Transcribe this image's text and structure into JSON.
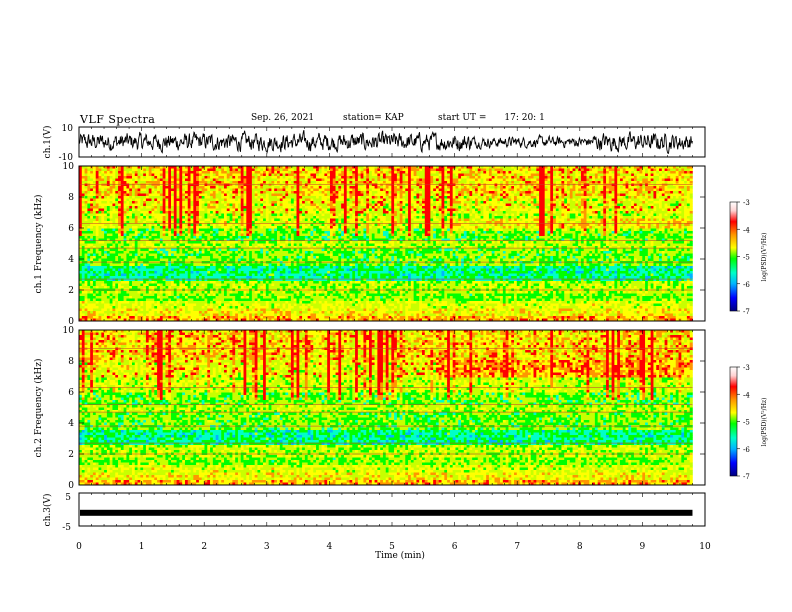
{
  "header": {
    "title": "VLF Spectra",
    "date": "Sep. 26, 2021",
    "station": "station= KAP",
    "start_label": "start  UT  =",
    "start_time": "17: 20: 1"
  },
  "colors": {
    "spectrum_scale": [
      "#000080",
      "#0000ff",
      "#00b4ff",
      "#00ffc8",
      "#00ff00",
      "#c8ff00",
      "#ffff00",
      "#ff9600",
      "#ff0000",
      "#ffd2d2",
      "#ffffff"
    ],
    "trace": "#000000"
  },
  "chart_data": [
    {
      "name": "ch1-waveform",
      "type": "line",
      "ylabel": "ch.1(V)",
      "ylim": [
        -10,
        10
      ],
      "y_ticks": [
        "10",
        "-10"
      ],
      "xlim": [
        0,
        10
      ],
      "description_values": "noisy voltage trace between roughly -8 and +8 V from 0 to 9.8 min"
    },
    {
      "name": "ch1-spectrogram",
      "type": "heatmap",
      "ylabel": "ch.1\nFrequency (kHz)",
      "ylim": [
        0,
        10
      ],
      "y_ticks": [
        "0",
        "2",
        "4",
        "6",
        "8",
        "10"
      ],
      "xlim": [
        0,
        10
      ],
      "colorbar": {
        "label": "log(PSD)(V²/Hz)",
        "range": [
          -7,
          -3
        ],
        "ticks": [
          "-3",
          "-4",
          "-5",
          "-6",
          "-7"
        ]
      },
      "data_end_min": 9.8
    },
    {
      "name": "ch2-spectrogram",
      "type": "heatmap",
      "ylabel": "ch.2\nFrequency (kHz)",
      "ylim": [
        0,
        10
      ],
      "y_ticks": [
        "0",
        "2",
        "4",
        "6",
        "8",
        "10"
      ],
      "xlim": [
        0,
        10
      ],
      "colorbar": {
        "label": "log(PSD)(V²/Hz)",
        "range": [
          -7,
          -3
        ],
        "ticks": [
          "-3",
          "-4",
          "-5",
          "-6",
          "-7"
        ]
      },
      "data_end_min": 9.8
    },
    {
      "name": "ch3-waveform",
      "type": "line",
      "ylabel": "ch.3(V)",
      "ylim": [
        -5,
        5
      ],
      "y_ticks": [
        "5",
        "-5"
      ],
      "xlabel": "Time (min)",
      "xlim": [
        0,
        10
      ],
      "x_ticks": [
        "0",
        "1",
        "2",
        "3",
        "4",
        "5",
        "6",
        "7",
        "8",
        "9",
        "10"
      ],
      "level_v": -1,
      "data_end_min": 9.8
    }
  ]
}
